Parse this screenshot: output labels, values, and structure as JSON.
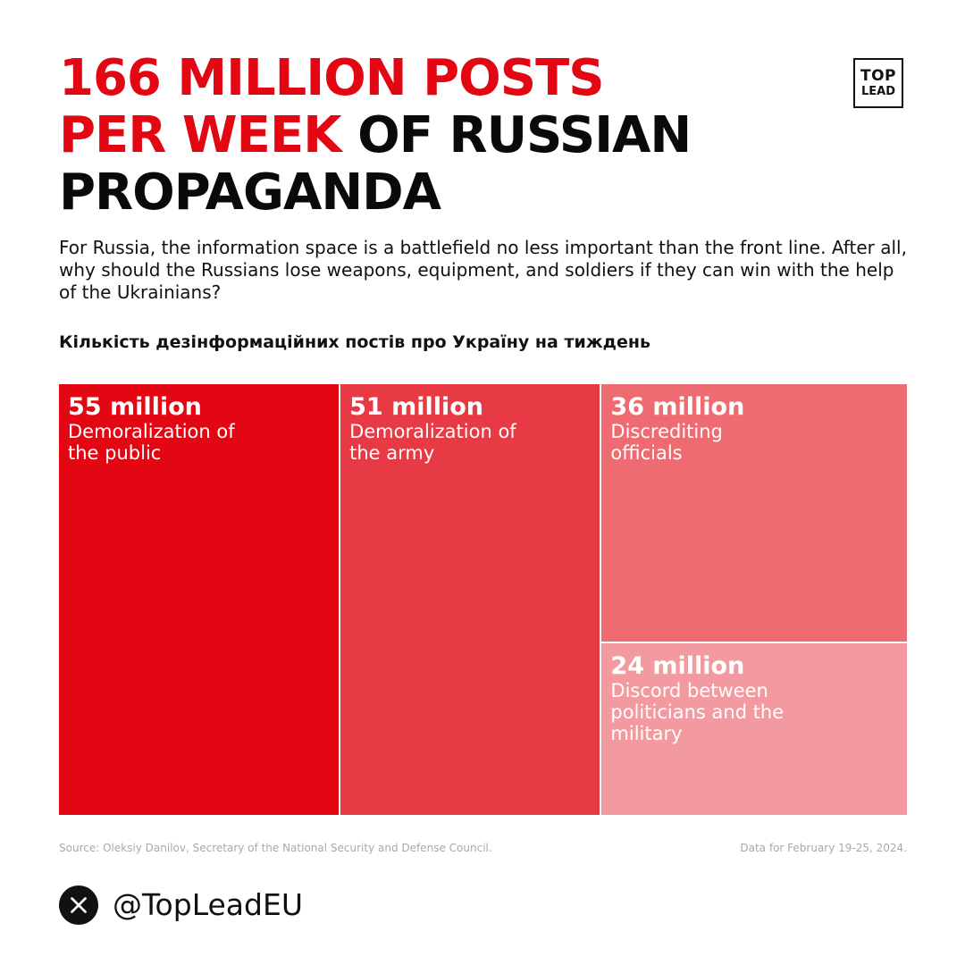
{
  "headline": {
    "red_part_1": "166 MILLION POSTS",
    "red_part_2": "PER WEEK",
    "dark_part_1": "OF RUSSIAN",
    "dark_part_2": "PROPAGANDA"
  },
  "logo": {
    "line1": "TOP",
    "line2": "LEAD"
  },
  "intro": "For Russia, the information space is a battlefield no less important than the front line. After all, why should the Russians lose weapons, equipment, and soldiers if they can win with the help of the Ukrainians?",
  "chart_data": {
    "type": "treemap",
    "title": "Кількість дезінформаційних постів про Україну на тиждень",
    "unit": "million",
    "items": [
      {
        "value": 55,
        "value_label": "55 million",
        "label": "Demoralization of the public",
        "color": "#e30613"
      },
      {
        "value": 51,
        "value_label": "51 million",
        "label": "Demoralization of the army",
        "color": "#e83a44"
      },
      {
        "value": 36,
        "value_label": "36 million",
        "label": "Discrediting officials",
        "color": "#ee6b72"
      },
      {
        "value": 24,
        "value_label": "24 million",
        "label": "Discord between politicians and the military",
        "color": "#f39aa0"
      }
    ]
  },
  "footer": {
    "source": "Source: Oleksiy Danilov, Secretary of the National Security and Defense Council.",
    "period": "Data for February 19-25, 2024."
  },
  "social": {
    "icon": "x-logo-icon",
    "handle": "@TopLeadEU"
  }
}
